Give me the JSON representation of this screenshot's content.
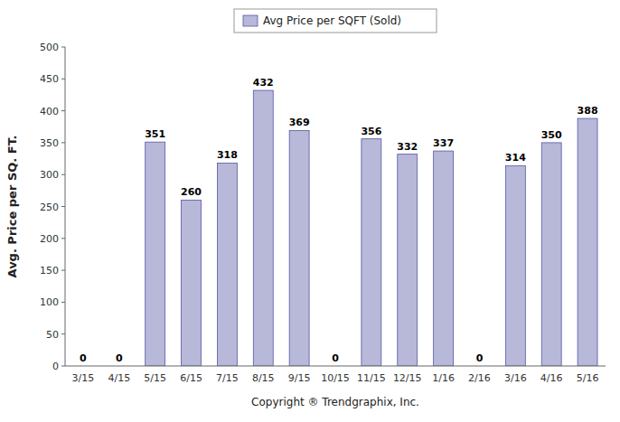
{
  "chart_data": {
    "type": "bar",
    "categories": [
      "3/15",
      "4/15",
      "5/15",
      "6/15",
      "7/15",
      "8/15",
      "9/15",
      "10/15",
      "11/15",
      "12/15",
      "1/16",
      "2/16",
      "3/16",
      "4/16",
      "5/16"
    ],
    "series": [
      {
        "name": "Avg Price per SQFT (Sold)",
        "color": "#b8b8d8",
        "values": [
          0,
          0,
          351,
          260,
          318,
          432,
          369,
          0,
          356,
          332,
          337,
          0,
          314,
          350,
          388
        ]
      }
    ],
    "x_label": "Copyright ® Trendgraphix, Inc.",
    "y_label": "Avg. Price per SQ. FT.",
    "ylim": [
      0,
      500
    ],
    "yticks": [
      0,
      50,
      100,
      150,
      200,
      250,
      300,
      350,
      400,
      450,
      500
    ],
    "grid": false,
    "legend": "top",
    "data_labels": true
  }
}
